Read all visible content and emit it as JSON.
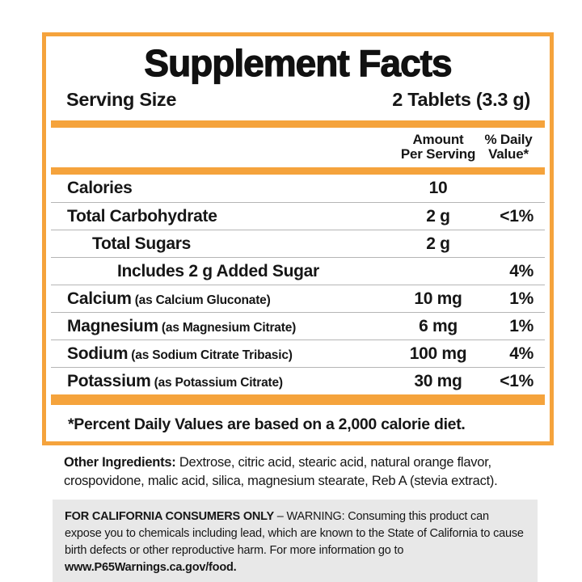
{
  "panel": {
    "title": "Supplement Facts",
    "serving": {
      "label": "Serving Size",
      "value": "2 Tablets (3.3 g)"
    },
    "columns": {
      "amount_line1": "Amount",
      "amount_line2": "Per Serving",
      "dv_line1": "% Daily",
      "dv_line2": "Value*"
    },
    "rows": [
      {
        "name": "Calories",
        "detail": "",
        "amount": "10",
        "dv": "",
        "indent": 0
      },
      {
        "name": "Total Carbohydrate",
        "detail": "",
        "amount": "2 g",
        "dv": "<1%",
        "indent": 0
      },
      {
        "name": "Total Sugars",
        "detail": "",
        "amount": "2 g",
        "dv": "",
        "indent": 1
      },
      {
        "name": "Includes 2 g Added Sugar",
        "detail": "",
        "amount": "",
        "dv": "4%",
        "indent": 2
      },
      {
        "name": "Calcium",
        "detail": "(as Calcium Gluconate)",
        "amount": "10 mg",
        "dv": "1%",
        "indent": 0
      },
      {
        "name": "Magnesium",
        "detail": "(as Magnesium Citrate)",
        "amount": "6 mg",
        "dv": "1%",
        "indent": 0
      },
      {
        "name": "Sodium",
        "detail": "(as Sodium Citrate Tribasic)",
        "amount": "100 mg",
        "dv": "4%",
        "indent": 0
      },
      {
        "name": "Potassium",
        "detail": "(as Potassium Citrate)",
        "amount": "30 mg",
        "dv": "<1%",
        "indent": 0
      }
    ],
    "footnote": "*Percent Daily Values are based on a 2,000 calorie diet."
  },
  "other_ingredients": {
    "label": "Other Ingredients:",
    "text": " Dextrose, citric acid, stearic acid, natural orange flavor, crospovidone, malic acid, silica, magnesium stearate, Reb A (stevia extract)."
  },
  "california_warning": {
    "bold_intro": "FOR CALIFORNIA CONSUMERS ONLY",
    "body": " – WARNING: Consuming this product can expose you to chemicals including lead, which are known to the State of California to cause birth defects or other reproductive harm. For more information go to ",
    "link": "www.P65Warnings.ca.gov/food."
  },
  "colors": {
    "accent_orange": "#F5A33C",
    "warning_bg": "#E8E8E8",
    "divider_gray": "#B5B5B5"
  }
}
